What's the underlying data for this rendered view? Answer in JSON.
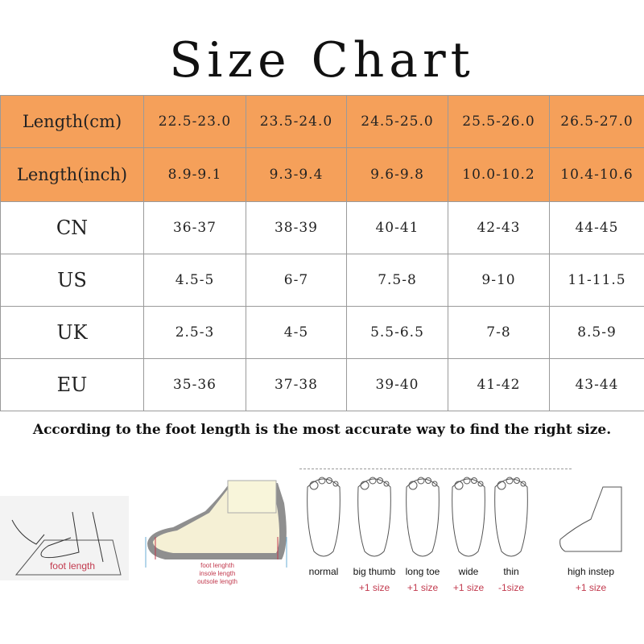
{
  "title": "Size Chart",
  "table": {
    "rows": [
      {
        "label": "Length(cm)",
        "values": [
          "22.5-23.0",
          "23.5-24.0",
          "24.5-25.0",
          "25.5-26.0",
          "26.5-27.0"
        ],
        "highlight": true
      },
      {
        "label": "Length(inch)",
        "values": [
          "8.9-9.1",
          "9.3-9.4",
          "9.6-9.8",
          "10.0-10.2",
          "10.4-10.6"
        ],
        "highlight": true
      },
      {
        "label": "CN",
        "values": [
          "36-37",
          "38-39",
          "40-41",
          "42-43",
          "44-45"
        ]
      },
      {
        "label": "US",
        "values": [
          "4.5-5",
          "6-7",
          "7.5-8",
          "9-10",
          "11-11.5"
        ]
      },
      {
        "label": "UK",
        "values": [
          "2.5-3",
          "4-5",
          "5.5-6.5",
          "7-8",
          "8.5-9"
        ]
      },
      {
        "label": "EU",
        "values": [
          "35-36",
          "37-38",
          "39-40",
          "41-42",
          "43-44"
        ]
      }
    ],
    "highlight_color": "#f5a05a"
  },
  "note": "According to the foot length is the most  accurate way to find the right size.",
  "illustrations": {
    "measure": {
      "label": "foot length"
    },
    "shoe": {
      "labels": [
        "foot lenghth",
        "insole length",
        "outsole length"
      ]
    },
    "foot_types": [
      {
        "name": "normal",
        "adjust": ""
      },
      {
        "name": "big thumb",
        "adjust": "+1 size"
      },
      {
        "name": "long toe",
        "adjust": "+1 size"
      },
      {
        "name": "wide",
        "adjust": "+1 size"
      },
      {
        "name": "thin",
        "adjust": "-1size"
      },
      {
        "name": "high instep",
        "adjust": "+1 size"
      }
    ]
  }
}
